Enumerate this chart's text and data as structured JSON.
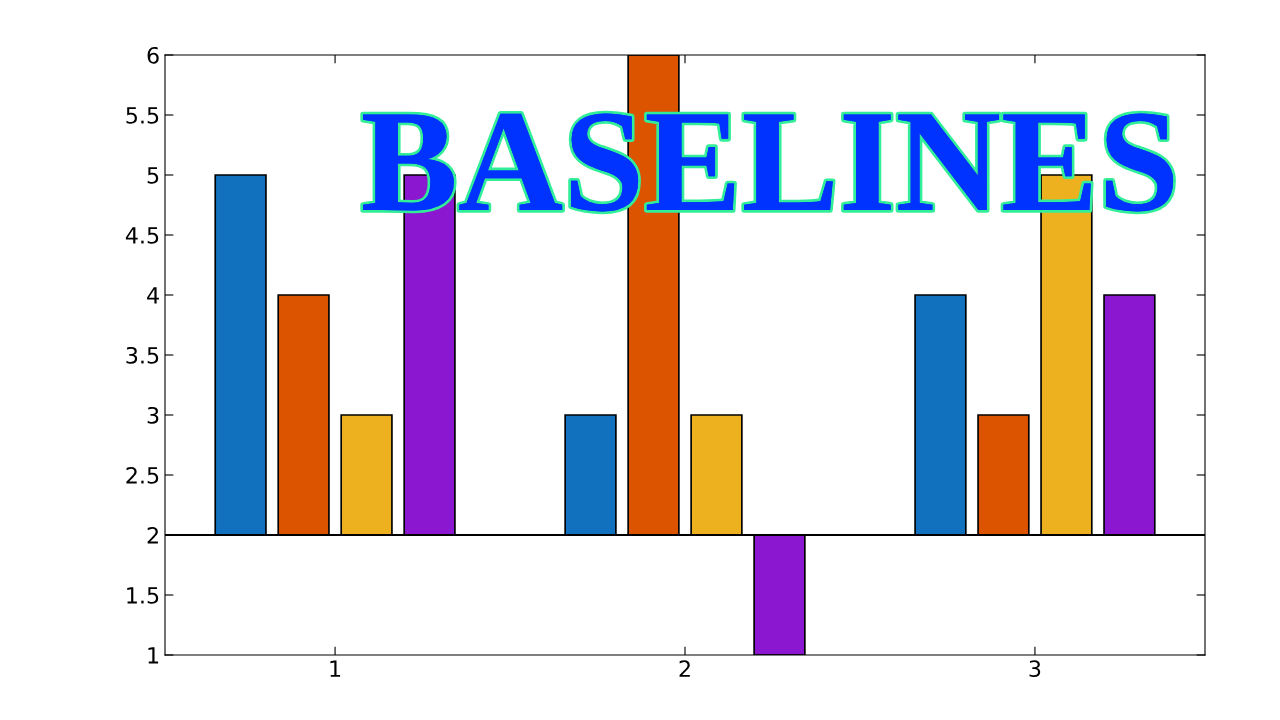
{
  "chart_data": {
    "type": "bar",
    "title": "BASELINES",
    "categories": [
      "1",
      "2",
      "3"
    ],
    "series": [
      {
        "color": "#1171be",
        "base": [
          2,
          2,
          2
        ],
        "values": [
          3,
          1,
          2
        ]
      },
      {
        "color": "#dd5400",
        "base": [
          2,
          2,
          2
        ],
        "values": [
          2,
          4,
          1
        ]
      },
      {
        "color": "#edb120",
        "base": [
          2,
          2,
          2
        ],
        "values": [
          1,
          1,
          3
        ]
      },
      {
        "color": "#8b18d0",
        "base": [
          2,
          2,
          2
        ],
        "values": [
          3,
          -1,
          2
        ]
      }
    ],
    "ylim": [
      1,
      6
    ],
    "yticks": [
      1,
      1.5,
      2,
      2.5,
      3,
      3.5,
      4,
      4.5,
      5,
      5.5,
      6
    ],
    "ref_lines": [
      {
        "axis": "y",
        "value": 2,
        "color": "#000000"
      }
    ],
    "grid": false,
    "legend": false
  }
}
